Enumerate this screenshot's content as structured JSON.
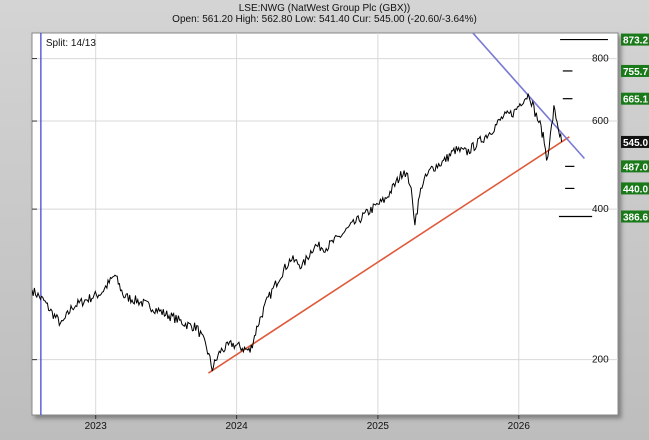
{
  "header": {
    "title": "LSE:NWG (NatWest Group Plc (GBX))",
    "ohlc": "Open: 561.20 High: 562.80 Low: 541.40 Cur: 545.00 (-20.60/-3.64%)"
  },
  "chart_data": {
    "type": "line",
    "scale": "log",
    "ylim": [
      155,
      900
    ],
    "xlim": [
      "2022-07-20",
      "2026-09-15"
    ],
    "grid": true,
    "y_ticks": [
      {
        "value": 200,
        "label": "200"
      },
      {
        "value": 400,
        "label": "400"
      },
      {
        "value": 600,
        "label": "600"
      },
      {
        "value": 800,
        "label": "800"
      }
    ],
    "x_ticks": [
      {
        "date": "2023-01-01",
        "label": "2023"
      },
      {
        "date": "2024-01-01",
        "label": "2024"
      },
      {
        "date": "2025-01-01",
        "label": "2025"
      },
      {
        "date": "2026-01-01",
        "label": "2026"
      }
    ],
    "split_label": "Split: 14/13",
    "split_date": "2022-08-12",
    "price": [
      [
        "2022-07-20",
        276
      ],
      [
        "2022-08-20",
        262
      ],
      [
        "2022-09-10",
        248
      ],
      [
        "2022-10-05",
        235
      ],
      [
        "2022-11-01",
        255
      ],
      [
        "2022-12-01",
        262
      ],
      [
        "2023-01-15",
        272
      ],
      [
        "2023-02-20",
        295
      ],
      [
        "2023-03-15",
        268
      ],
      [
        "2023-04-20",
        262
      ],
      [
        "2023-05-25",
        255
      ],
      [
        "2023-06-25",
        248
      ],
      [
        "2023-07-25",
        242
      ],
      [
        "2023-08-25",
        235
      ],
      [
        "2023-09-20",
        232
      ],
      [
        "2023-10-15",
        212
      ],
      [
        "2023-10-30",
        192
      ],
      [
        "2023-11-20",
        208
      ],
      [
        "2023-12-20",
        215
      ],
      [
        "2024-01-10",
        212
      ],
      [
        "2024-02-05",
        208
      ],
      [
        "2024-02-25",
        235
      ],
      [
        "2024-03-20",
        262
      ],
      [
        "2024-04-20",
        292
      ],
      [
        "2024-05-20",
        318
      ],
      [
        "2024-06-20",
        308
      ],
      [
        "2024-07-20",
        338
      ],
      [
        "2024-08-20",
        335
      ],
      [
        "2024-09-20",
        350
      ],
      [
        "2024-10-20",
        368
      ],
      [
        "2024-11-20",
        385
      ],
      [
        "2024-12-20",
        402
      ],
      [
        "2025-01-20",
        418
      ],
      [
        "2025-02-20",
        455
      ],
      [
        "2025-03-10",
        480
      ],
      [
        "2025-03-25",
        452
      ],
      [
        "2025-04-07",
        378
      ],
      [
        "2025-04-25",
        448
      ],
      [
        "2025-05-20",
        482
      ],
      [
        "2025-06-20",
        498
      ],
      [
        "2025-07-20",
        525
      ],
      [
        "2025-08-20",
        520
      ],
      [
        "2025-09-20",
        545
      ],
      [
        "2025-10-20",
        572
      ],
      [
        "2025-11-20",
        610
      ],
      [
        "2025-12-20",
        625
      ],
      [
        "2026-01-10",
        660
      ],
      [
        "2026-01-28",
        680
      ],
      [
        "2026-02-12",
        625
      ],
      [
        "2026-02-25",
        590
      ],
      [
        "2026-03-08",
        548
      ],
      [
        "2026-03-14",
        502
      ],
      [
        "2026-03-24",
        560
      ],
      [
        "2026-04-02",
        635
      ],
      [
        "2026-04-10",
        600
      ],
      [
        "2026-04-17",
        565
      ],
      [
        "2026-04-22",
        545
      ]
    ],
    "trend_lines": [
      {
        "color": "#e05a3a",
        "from": [
          "2023-10-20",
          188
        ],
        "to": [
          "2026-05-12",
          558
        ]
      },
      {
        "color": "#7a7ad6",
        "from": [
          "2025-06-05",
          1080
        ],
        "to": [
          "2026-06-20",
          505
        ]
      }
    ],
    "target_marks": [
      {
        "value": 873.2,
        "from": "2026-04-18",
        "to": "2026-08-20"
      },
      {
        "value": 755.7,
        "from": "2026-04-25",
        "to": "2026-05-20"
      },
      {
        "value": 665.1,
        "from": "2026-04-25",
        "to": "2026-05-20"
      },
      {
        "value": 487.0,
        "from": "2026-05-01",
        "to": "2026-05-25"
      },
      {
        "value": 440.0,
        "from": "2026-05-01",
        "to": "2026-05-25"
      },
      {
        "value": 386.6,
        "from": "2026-04-15",
        "to": "2026-07-10"
      }
    ],
    "price_tags": [
      {
        "value": 873.2,
        "label": "873.2",
        "bg": "#1a7a1a",
        "fg": "#ffffff"
      },
      {
        "value": 755.7,
        "label": "755.7",
        "bg": "#1a7a1a",
        "fg": "#ffffff"
      },
      {
        "value": 665.1,
        "label": "665.1",
        "bg": "#1a7a1a",
        "fg": "#ffffff"
      },
      {
        "value": 545.0,
        "label": "545.0",
        "bg": "#111111",
        "fg": "#ffffff"
      },
      {
        "value": 487.0,
        "label": "487.0",
        "bg": "#1a7a1a",
        "fg": "#ffffff"
      },
      {
        "value": 440.0,
        "label": "440.0",
        "bg": "#1a7a1a",
        "fg": "#ffffff"
      },
      {
        "value": 386.6,
        "label": "386.6",
        "bg": "#1a7a1a",
        "fg": "#ffffff"
      }
    ],
    "colors": {
      "plot_bg": "#ffffff",
      "grid": "#d8d8d8",
      "price_line": "#000000",
      "split_line": "#3a3ad0",
      "split_text": "#3a3ad0"
    }
  }
}
